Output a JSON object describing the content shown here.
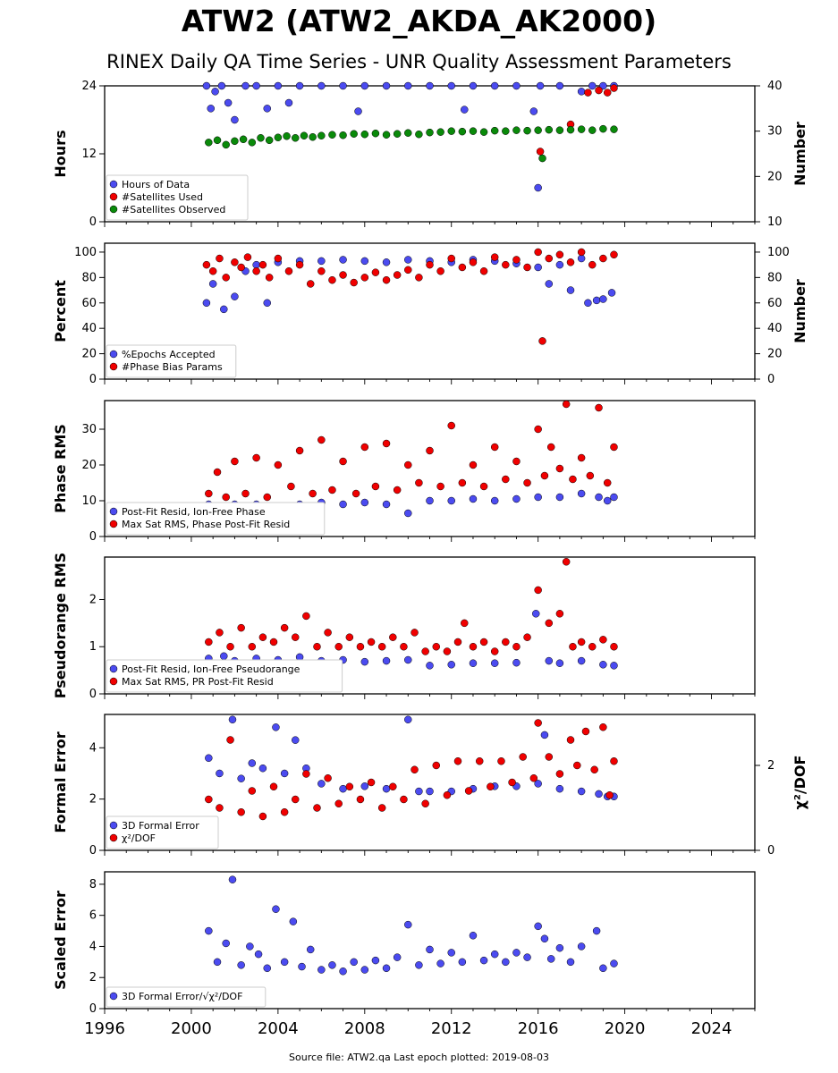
{
  "title": "ATW2 (ATW2_AKDA_AK2000)",
  "subtitle": "RINEX Daily QA Time Series - UNR Quality Assessment Parameters",
  "footer": "Source file: ATW2.qa Last epoch plotted: 2019-08-03",
  "colors": {
    "blue": "#4b4bf0",
    "red": "#f00000",
    "green": "#0a8a0a",
    "edge": "#000000"
  },
  "chart_data": [
    {
      "type": "scatter",
      "ylabel": "Hours",
      "y2label": "Number",
      "xlim": [
        1996,
        2026
      ],
      "ylim": [
        0,
        24
      ],
      "y2lim": [
        10,
        40
      ],
      "yticks": [
        "0",
        "12",
        "24"
      ],
      "y2ticks": [
        "10",
        "20",
        "30",
        "40"
      ],
      "legend_position": "lower-left",
      "series": [
        {
          "name": "Hours of Data",
          "color": "blue",
          "axis": "left",
          "x": [
            2000.7,
            2000.9,
            2001.1,
            2001.4,
            2001.7,
            2002.0,
            2002.5,
            2003.0,
            2003.5,
            2004.0,
            2004.5,
            2005.0,
            2006.0,
            2007.0,
            2007.7,
            2008.0,
            2009.0,
            2010.0,
            2011.0,
            2012.0,
            2012.6,
            2013.0,
            2014.0,
            2015.0,
            2015.8,
            2016.0,
            2016.1,
            2017.0,
            2018.0,
            2018.5,
            2019.0,
            2019.5
          ],
          "y": [
            24,
            20,
            23,
            24,
            21,
            18,
            24,
            24,
            20,
            24,
            21,
            24,
            24,
            24,
            19.5,
            24,
            24,
            24,
            24,
            24,
            19.8,
            24,
            24,
            24,
            19.5,
            6,
            24,
            24,
            23,
            24,
            24,
            24
          ]
        },
        {
          "name": "#Satellites Used",
          "color": "red",
          "axis": "right",
          "x": [
            2016.1,
            2017.5,
            2018.3,
            2018.8,
            2019.2,
            2019.5
          ],
          "y": [
            25.5,
            31.5,
            38.5,
            39,
            38.5,
            39.5
          ]
        },
        {
          "name": "#Satellites Observed",
          "color": "green",
          "axis": "right",
          "x": [
            2000.8,
            2001.2,
            2001.6,
            2002.0,
            2002.4,
            2002.8,
            2003.2,
            2003.6,
            2004.0,
            2004.4,
            2004.8,
            2005.2,
            2005.6,
            2006.0,
            2006.5,
            2007.0,
            2007.5,
            2008.0,
            2008.5,
            2009.0,
            2009.5,
            2010.0,
            2010.5,
            2011.0,
            2011.5,
            2012.0,
            2012.5,
            2013.0,
            2013.5,
            2014.0,
            2014.5,
            2015.0,
            2015.5,
            2016.0,
            2016.2,
            2016.5,
            2017.0,
            2017.5,
            2018.0,
            2018.5,
            2019.0,
            2019.5
          ],
          "y": [
            27.5,
            28,
            27,
            27.8,
            28.2,
            27.5,
            28.5,
            28,
            28.6,
            28.9,
            28.5,
            29,
            28.7,
            29,
            29.2,
            29.1,
            29.4,
            29.3,
            29.5,
            29.2,
            29.4,
            29.6,
            29.3,
            29.7,
            29.8,
            30,
            29.9,
            30,
            29.8,
            30.1,
            30,
            30.2,
            30.1,
            30.2,
            24,
            30.3,
            30.2,
            30.3,
            30.4,
            30.2,
            30.5,
            30.4
          ]
        }
      ]
    },
    {
      "type": "scatter",
      "ylabel": "Percent",
      "y2label": "Number",
      "xlim": [
        1996,
        2026
      ],
      "ylim": [
        0,
        107
      ],
      "y2lim": [
        0,
        107
      ],
      "yticks": [
        "0",
        "20",
        "40",
        "60",
        "80",
        "100"
      ],
      "y2ticks": [
        "0",
        "20",
        "40",
        "60",
        "80",
        "100"
      ],
      "legend_position": "lower-left",
      "series": [
        {
          "name": "%Epochs Accepted",
          "color": "blue",
          "axis": "left",
          "x": [
            2000.7,
            2001.0,
            2001.5,
            2002.0,
            2002.5,
            2003.0,
            2003.5,
            2004.0,
            2005.0,
            2006.0,
            2007.0,
            2008.0,
            2009.0,
            2010.0,
            2011.0,
            2012.0,
            2013.0,
            2014.0,
            2015.0,
            2016.0,
            2016.5,
            2017.0,
            2017.5,
            2018.0,
            2018.3,
            2018.7,
            2019.0,
            2019.4
          ],
          "y": [
            60,
            75,
            55,
            65,
            85,
            90,
            60,
            92,
            93,
            93,
            94,
            93,
            92,
            94,
            93,
            92,
            94,
            93,
            91,
            88,
            75,
            90,
            70,
            95,
            60,
            62,
            63,
            68
          ]
        },
        {
          "name": "#Phase Bias Params",
          "color": "red",
          "axis": "right",
          "x": [
            2000.7,
            2001.0,
            2001.3,
            2001.6,
            2002.0,
            2002.3,
            2002.6,
            2003.0,
            2003.3,
            2003.6,
            2004.0,
            2004.5,
            2005.0,
            2005.5,
            2006.0,
            2006.5,
            2007.0,
            2007.5,
            2008.0,
            2008.5,
            2009.0,
            2009.5,
            2010.0,
            2010.5,
            2011.0,
            2011.5,
            2012.0,
            2012.5,
            2013.0,
            2013.5,
            2014.0,
            2014.5,
            2015.0,
            2015.5,
            2016.0,
            2016.2,
            2016.5,
            2017.0,
            2017.5,
            2018.0,
            2018.5,
            2019.0,
            2019.5
          ],
          "y": [
            90,
            85,
            95,
            80,
            92,
            88,
            96,
            85,
            90,
            80,
            95,
            85,
            90,
            75,
            85,
            78,
            82,
            76,
            80,
            84,
            78,
            82,
            86,
            80,
            90,
            85,
            95,
            88,
            92,
            85,
            96,
            90,
            94,
            88,
            100,
            30,
            95,
            98,
            92,
            100,
            90,
            95,
            98
          ]
        }
      ]
    },
    {
      "type": "scatter",
      "ylabel": "Phase RMS",
      "xlim": [
        1996,
        2026
      ],
      "ylim": [
        0,
        38
      ],
      "yticks": [
        "0",
        "10",
        "20",
        "30"
      ],
      "legend_position": "lower-left",
      "series": [
        {
          "name": "Post-Fit Resid, Ion-Free Phase",
          "color": "blue",
          "x": [
            2000.8,
            2001.5,
            2002.0,
            2003.0,
            2004.0,
            2005.0,
            2006.0,
            2007.0,
            2008.0,
            2009.0,
            2010.0,
            2011.0,
            2012.0,
            2013.0,
            2014.0,
            2015.0,
            2016.0,
            2017.0,
            2018.0,
            2018.8,
            2019.2,
            2019.5
          ],
          "y": [
            9,
            8.5,
            9,
            9,
            8.5,
            9,
            9.5,
            9,
            9.5,
            9,
            6.5,
            10,
            10,
            10.5,
            10,
            10.5,
            11,
            11,
            12,
            11,
            10,
            11
          ]
        },
        {
          "name": "Max Sat RMS, Phase Post-Fit Resid",
          "color": "red",
          "x": [
            2000.8,
            2001.2,
            2001.6,
            2002.0,
            2002.5,
            2003.0,
            2003.5,
            2004.0,
            2004.6,
            2005.0,
            2005.6,
            2006.0,
            2006.5,
            2007.0,
            2007.6,
            2008.0,
            2008.5,
            2009.0,
            2009.5,
            2010.0,
            2010.5,
            2011.0,
            2011.5,
            2012.0,
            2012.5,
            2013.0,
            2013.5,
            2014.0,
            2014.5,
            2015.0,
            2015.5,
            2016.0,
            2016.3,
            2016.6,
            2017.0,
            2017.3,
            2017.6,
            2018.0,
            2018.4,
            2018.8,
            2019.2,
            2019.5
          ],
          "y": [
            12,
            18,
            11,
            21,
            12,
            22,
            11,
            20,
            14,
            24,
            12,
            27,
            13,
            21,
            12,
            25,
            14,
            26,
            13,
            20,
            15,
            24,
            14,
            31,
            15,
            20,
            14,
            25,
            16,
            21,
            15,
            30,
            17,
            25,
            19,
            37,
            16,
            22,
            17,
            36,
            15,
            25
          ]
        }
      ]
    },
    {
      "type": "scatter",
      "ylabel": "Pseudorange RMS",
      "xlim": [
        1996,
        2026
      ],
      "ylim": [
        0,
        2.9
      ],
      "yticks": [
        "0",
        "1",
        "2"
      ],
      "legend_position": "lower-left",
      "series": [
        {
          "name": "Post-Fit Resid, Ion-Free Pseudorange",
          "color": "blue",
          "x": [
            2000.8,
            2001.5,
            2002.0,
            2003.0,
            2004.0,
            2005.0,
            2006.0,
            2007.0,
            2008.0,
            2009.0,
            2010.0,
            2011.0,
            2012.0,
            2013.0,
            2014.0,
            2015.0,
            2015.9,
            2016.5,
            2017.0,
            2018.0,
            2019.0,
            2019.5
          ],
          "y": [
            0.75,
            0.8,
            0.7,
            0.75,
            0.72,
            0.78,
            0.7,
            0.72,
            0.68,
            0.7,
            0.72,
            0.6,
            0.62,
            0.65,
            0.65,
            0.66,
            1.7,
            0.7,
            0.65,
            0.7,
            0.62,
            0.6
          ]
        },
        {
          "name": "Max Sat RMS, PR Post-Fit Resid",
          "color": "red",
          "x": [
            2000.8,
            2001.3,
            2001.8,
            2002.3,
            2002.8,
            2003.3,
            2003.8,
            2004.3,
            2004.8,
            2005.3,
            2005.8,
            2006.3,
            2006.8,
            2007.3,
            2007.8,
            2008.3,
            2008.8,
            2009.3,
            2009.8,
            2010.3,
            2010.8,
            2011.3,
            2011.8,
            2012.3,
            2012.6,
            2013.0,
            2013.5,
            2014.0,
            2014.5,
            2015.0,
            2015.5,
            2016.0,
            2016.5,
            2017.0,
            2017.3,
            2017.6,
            2018.0,
            2018.5,
            2019.0,
            2019.5
          ],
          "y": [
            1.1,
            1.3,
            1.0,
            1.4,
            1.0,
            1.2,
            1.1,
            1.4,
            1.2,
            1.65,
            1.0,
            1.3,
            1.0,
            1.2,
            1.0,
            1.1,
            1.0,
            1.2,
            1.0,
            1.3,
            0.9,
            1.0,
            0.9,
            1.1,
            1.5,
            1.0,
            1.1,
            0.9,
            1.1,
            1.0,
            1.2,
            2.2,
            1.5,
            1.7,
            2.8,
            1.0,
            1.1,
            1.0,
            1.15,
            1.0
          ]
        }
      ]
    },
    {
      "type": "scatter",
      "ylabel": "Formal Error",
      "y2label": "χ²/DOF",
      "xlim": [
        1996,
        2026
      ],
      "ylim": [
        0,
        5.3
      ],
      "y2lim": [
        0,
        3.2
      ],
      "yticks": [
        "0",
        "2",
        "4"
      ],
      "y2ticks": [
        "0",
        "2"
      ],
      "legend_position": "lower-left",
      "series": [
        {
          "name": "3D Formal Error",
          "color": "blue",
          "axis": "left",
          "x": [
            2000.8,
            2001.3,
            2001.9,
            2002.3,
            2002.8,
            2003.3,
            2003.9,
            2004.3,
            2004.8,
            2005.3,
            2006.0,
            2007.0,
            2008.0,
            2009.0,
            2010.0,
            2010.5,
            2011.0,
            2012.0,
            2013.0,
            2014.0,
            2015.0,
            2016.0,
            2016.3,
            2017.0,
            2018.0,
            2018.8,
            2019.2,
            2019.5
          ],
          "y": [
            3.6,
            3.0,
            5.1,
            2.8,
            3.4,
            3.2,
            4.8,
            3.0,
            4.3,
            3.2,
            2.6,
            2.4,
            2.5,
            2.4,
            5.1,
            2.3,
            2.3,
            2.3,
            2.4,
            2.5,
            2.5,
            2.6,
            4.5,
            2.4,
            2.3,
            2.2,
            2.1,
            2.1
          ]
        },
        {
          "name": "χ²/DOF",
          "color": "red",
          "axis": "right",
          "x": [
            2000.8,
            2001.3,
            2001.8,
            2002.3,
            2002.8,
            2003.3,
            2003.8,
            2004.3,
            2004.8,
            2005.3,
            2005.8,
            2006.3,
            2006.8,
            2007.3,
            2007.8,
            2008.3,
            2008.8,
            2009.3,
            2009.8,
            2010.3,
            2010.8,
            2011.3,
            2011.8,
            2012.3,
            2012.8,
            2013.3,
            2013.8,
            2014.3,
            2014.8,
            2015.3,
            2015.8,
            2016.0,
            2016.5,
            2017.0,
            2017.5,
            2017.8,
            2018.2,
            2018.6,
            2019.0,
            2019.3,
            2019.5
          ],
          "y": [
            1.2,
            1.0,
            2.6,
            0.9,
            1.4,
            0.8,
            1.5,
            0.9,
            1.2,
            1.8,
            1.0,
            1.7,
            1.1,
            1.5,
            1.2,
            1.6,
            1.0,
            1.5,
            1.2,
            1.9,
            1.1,
            2.0,
            1.3,
            2.1,
            1.4,
            2.1,
            1.5,
            2.1,
            1.6,
            2.2,
            1.7,
            3.0,
            2.2,
            1.8,
            2.6,
            2.0,
            2.8,
            1.9,
            2.9,
            1.3,
            2.1
          ]
        }
      ]
    },
    {
      "type": "scatter",
      "ylabel": "Scaled Error",
      "xlim": [
        1996,
        2026
      ],
      "ylim": [
        0,
        8.8
      ],
      "yticks": [
        "0",
        "2",
        "4",
        "6",
        "8"
      ],
      "xticks": [
        "1996",
        "2000",
        "2004",
        "2008",
        "2012",
        "2016",
        "2020",
        "2024"
      ],
      "legend_position": "lower-left",
      "series": [
        {
          "name": "3D Formal Error/√χ²/DOF",
          "color": "blue",
          "x": [
            2000.8,
            2001.2,
            2001.6,
            2001.9,
            2002.3,
            2002.7,
            2003.1,
            2003.5,
            2003.9,
            2004.3,
            2004.7,
            2005.1,
            2005.5,
            2006.0,
            2006.5,
            2007.0,
            2007.5,
            2008.0,
            2008.5,
            2009.0,
            2009.5,
            2010.0,
            2010.5,
            2011.0,
            2011.5,
            2012.0,
            2012.5,
            2013.0,
            2013.5,
            2014.0,
            2014.5,
            2015.0,
            2015.5,
            2016.0,
            2016.3,
            2016.6,
            2017.0,
            2017.5,
            2018.0,
            2018.7,
            2019.0,
            2019.5
          ],
          "y": [
            5.0,
            3.0,
            4.2,
            8.3,
            2.8,
            4.0,
            3.5,
            2.6,
            6.4,
            3.0,
            5.6,
            2.7,
            3.8,
            2.5,
            2.8,
            2.4,
            3.0,
            2.5,
            3.1,
            2.6,
            3.3,
            5.4,
            2.8,
            3.8,
            2.9,
            3.6,
            3.0,
            4.7,
            3.1,
            3.5,
            3.0,
            3.6,
            3.3,
            5.3,
            4.5,
            3.2,
            3.9,
            3.0,
            4.0,
            5.0,
            2.6,
            2.9
          ]
        }
      ]
    }
  ]
}
